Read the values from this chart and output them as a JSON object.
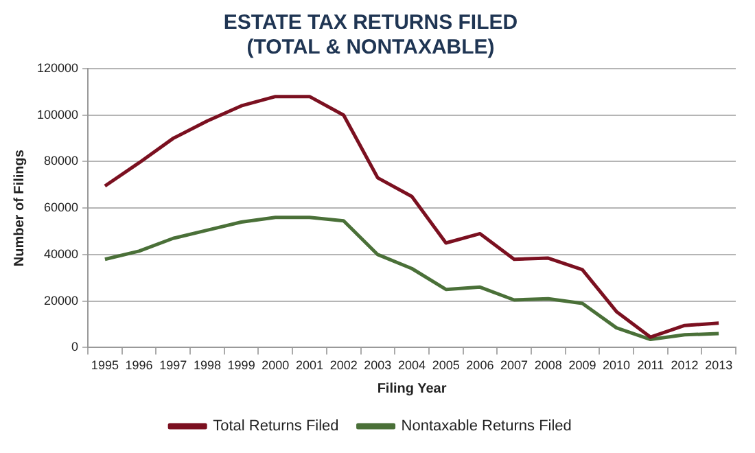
{
  "chart_data": {
    "type": "line",
    "title": [
      "ESTATE TAX RETURNS FILED",
      "(TOTAL & NONTAXABLE)"
    ],
    "xlabel": "Filing Year",
    "ylabel": "Number of Filings",
    "categories": [
      "1995",
      "1996",
      "1997",
      "1998",
      "1999",
      "2000",
      "2001",
      "2002",
      "2003",
      "2004",
      "2005",
      "2006",
      "2007",
      "2008",
      "2009",
      "2010",
      "2011",
      "2012",
      "2013"
    ],
    "series": [
      {
        "name": "Total Returns Filed",
        "color": "#7b1020",
        "values": [
          69500,
          79500,
          90000,
          97500,
          104000,
          108000,
          108000,
          100000,
          73000,
          65000,
          45000,
          49000,
          38000,
          38500,
          33500,
          15500,
          4500,
          9500,
          10500
        ]
      },
      {
        "name": "Nontaxable Returns Filed",
        "color": "#4a7038",
        "values": [
          38000,
          41500,
          47000,
          50500,
          54000,
          56000,
          56000,
          54500,
          40000,
          34000,
          25000,
          26000,
          20500,
          21000,
          19000,
          8500,
          3500,
          5500,
          6000
        ]
      }
    ],
    "ylim": [
      0,
      120000
    ],
    "yticks": [
      0,
      20000,
      40000,
      60000,
      80000,
      100000,
      120000
    ],
    "grid": "y",
    "legend": "bottom",
    "marker": "none",
    "line_style": "solid"
  }
}
